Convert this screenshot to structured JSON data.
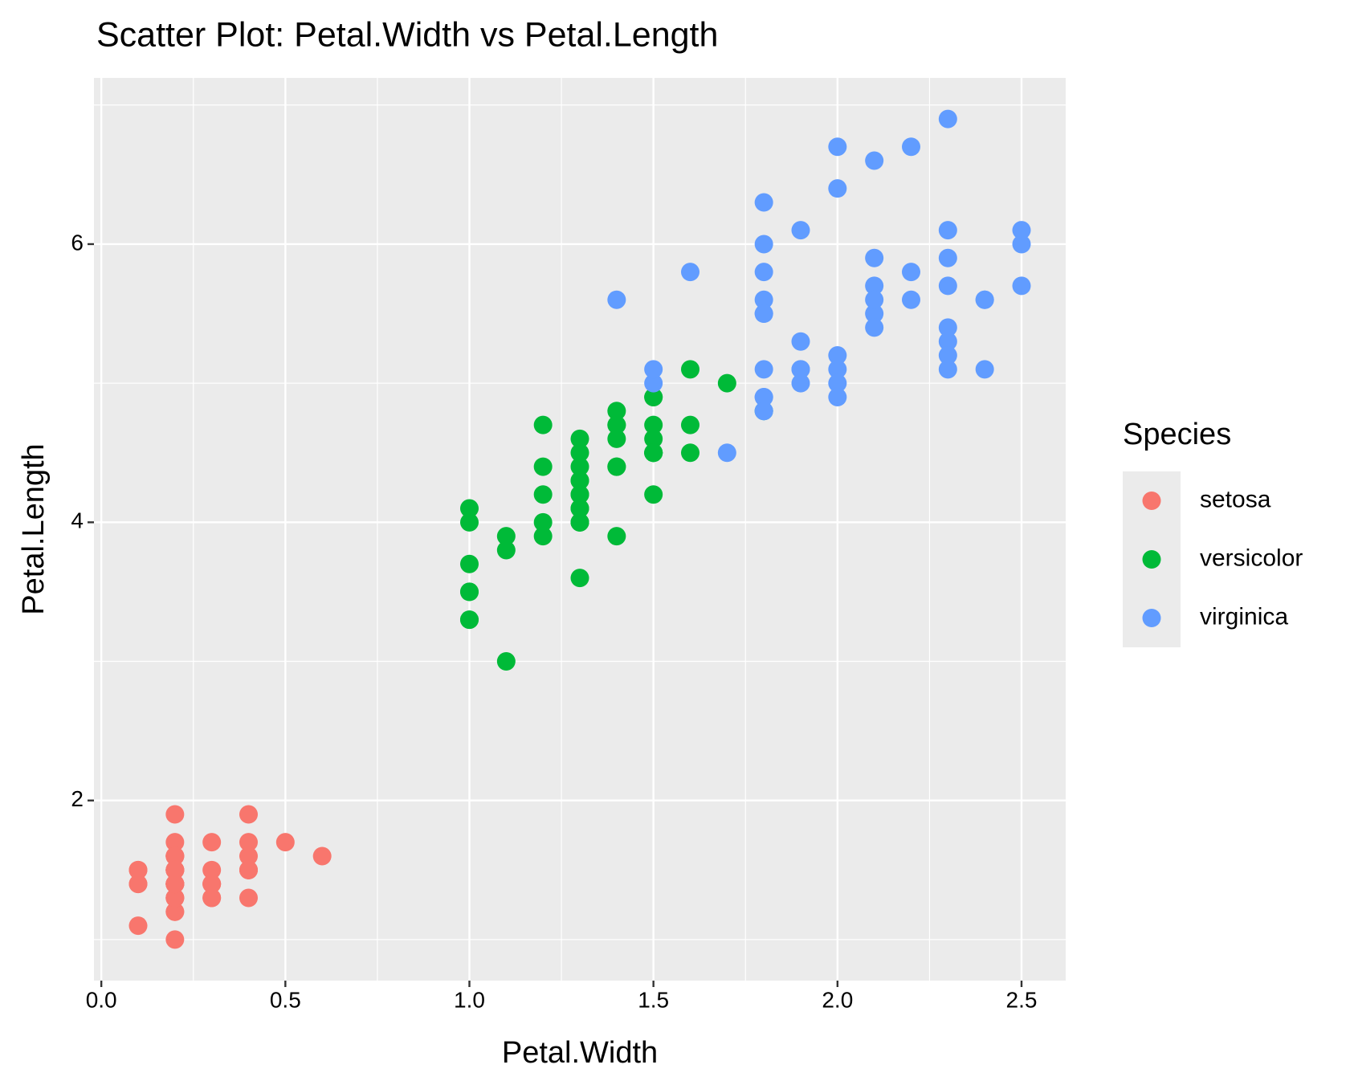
{
  "chart_data": {
    "type": "scatter",
    "title": "Scatter Plot: Petal.Width vs Petal.Length",
    "x_label": "Petal.Width",
    "y_label": "Petal.Length",
    "legend_title": "Species",
    "legend": "right",
    "grid": true,
    "xlim": [
      -0.02,
      2.62
    ],
    "ylim": [
      0.705,
      7.195
    ],
    "xticks": [
      {
        "value": 0,
        "label": "0.0"
      },
      0.5,
      {
        "value": 1,
        "label": "1.0"
      },
      1.5,
      {
        "value": 2,
        "label": "2.0"
      },
      2.5
    ],
    "yticks": [
      2,
      4,
      6
    ],
    "series": [
      {
        "name": "setosa",
        "color": "#f8766d",
        "x": [
          0.2,
          0.2,
          0.2,
          0.2,
          0.2,
          0.4,
          0.3,
          0.2,
          0.2,
          0.1,
          0.2,
          0.2,
          0.1,
          0.1,
          0.2,
          0.4,
          0.4,
          0.3,
          0.3,
          0.3,
          0.2,
          0.4,
          0.2,
          0.5,
          0.2,
          0.2,
          0.4,
          0.2,
          0.2,
          0.2,
          0.2,
          0.4,
          0.1,
          0.2,
          0.2,
          0.2,
          0.2,
          0.1,
          0.2,
          0.2,
          0.3,
          0.3,
          0.2,
          0.6,
          0.4,
          0.3,
          0.2,
          0.2,
          0.2,
          0.2
        ],
        "values": [
          1.4,
          1.4,
          1.3,
          1.5,
          1.4,
          1.7,
          1.4,
          1.5,
          1.4,
          1.5,
          1.5,
          1.6,
          1.4,
          1.1,
          1.2,
          1.5,
          1.3,
          1.4,
          1.7,
          1.5,
          1.7,
          1.5,
          1.0,
          1.7,
          1.9,
          1.6,
          1.6,
          1.5,
          1.4,
          1.6,
          1.6,
          1.5,
          1.5,
          1.4,
          1.5,
          1.2,
          1.3,
          1.4,
          1.3,
          1.5,
          1.3,
          1.3,
          1.3,
          1.6,
          1.9,
          1.4,
          1.6,
          1.4,
          1.5,
          1.4
        ]
      },
      {
        "name": "versicolor",
        "color": "#00ba38",
        "x": [
          1.4,
          1.5,
          1.5,
          1.3,
          1.5,
          1.3,
          1.6,
          1.0,
          1.3,
          1.4,
          1.0,
          1.5,
          1.0,
          1.4,
          1.3,
          1.4,
          1.5,
          1.0,
          1.5,
          1.1,
          1.8,
          1.3,
          1.5,
          1.2,
          1.3,
          1.4,
          1.4,
          1.7,
          1.5,
          1.0,
          1.1,
          1.0,
          1.2,
          1.6,
          1.5,
          1.6,
          1.5,
          1.3,
          1.3,
          1.3,
          1.2,
          1.4,
          1.2,
          1.0,
          1.3,
          1.2,
          1.3,
          1.3,
          1.1,
          1.3
        ],
        "values": [
          4.7,
          4.5,
          4.9,
          4.0,
          4.6,
          4.5,
          4.7,
          3.3,
          4.6,
          3.9,
          3.5,
          4.2,
          4.0,
          4.7,
          3.6,
          4.4,
          4.5,
          4.1,
          4.5,
          3.9,
          4.8,
          4.0,
          4.9,
          4.7,
          4.3,
          4.4,
          4.8,
          5.0,
          4.5,
          3.5,
          3.8,
          3.7,
          3.9,
          5.1,
          4.5,
          4.5,
          4.7,
          4.4,
          4.1,
          4.0,
          4.4,
          4.6,
          4.0,
          3.3,
          4.2,
          4.2,
          4.2,
          4.3,
          3.0,
          4.1
        ]
      },
      {
        "name": "virginica",
        "color": "#619cff",
        "x": [
          2.5,
          1.9,
          2.1,
          1.8,
          2.2,
          2.1,
          1.7,
          1.8,
          1.8,
          2.5,
          2.0,
          1.9,
          2.1,
          2.0,
          2.4,
          2.3,
          1.8,
          2.2,
          2.3,
          1.5,
          2.3,
          2.0,
          2.0,
          1.8,
          2.1,
          1.8,
          1.8,
          1.8,
          2.1,
          1.6,
          1.9,
          2.0,
          2.2,
          1.5,
          1.4,
          2.3,
          2.4,
          1.8,
          1.8,
          2.1,
          2.4,
          2.3,
          1.9,
          2.3,
          2.5,
          2.3,
          1.9,
          2.0,
          2.3,
          1.8
        ],
        "values": [
          6.0,
          5.1,
          5.9,
          5.6,
          5.8,
          6.6,
          4.5,
          6.3,
          5.8,
          6.1,
          5.1,
          5.3,
          5.5,
          5.0,
          5.1,
          5.3,
          5.5,
          6.7,
          6.9,
          5.0,
          5.7,
          4.9,
          6.7,
          4.9,
          5.7,
          6.0,
          4.8,
          4.9,
          5.6,
          5.8,
          6.1,
          6.4,
          5.6,
          5.1,
          5.6,
          6.1,
          5.6,
          5.5,
          4.8,
          5.4,
          5.6,
          5.1,
          5.1,
          5.9,
          5.7,
          5.2,
          5.0,
          5.2,
          5.4,
          5.1
        ]
      }
    ]
  }
}
